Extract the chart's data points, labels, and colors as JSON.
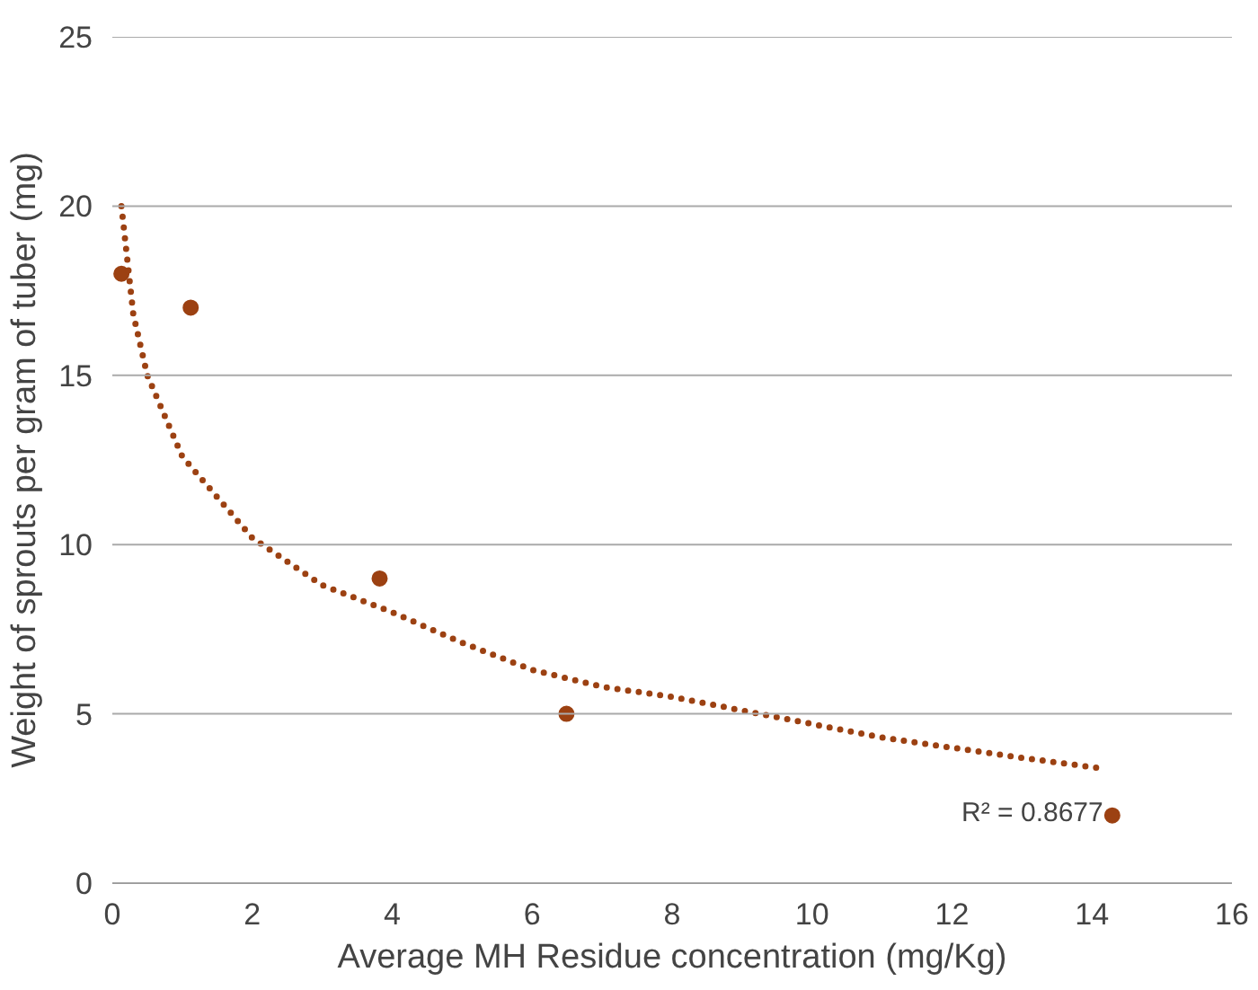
{
  "chart_data": {
    "type": "scatter",
    "xlabel": "Average MH Residue concentration (mg/Kg)",
    "ylabel": "Weight of sprouts per gram of tuber (mg)",
    "xlim": [
      0,
      16
    ],
    "xticks": [
      0,
      2,
      4,
      6,
      8,
      10,
      12,
      14,
      16
    ],
    "ylim": [
      0,
      25
    ],
    "yticks": [
      0,
      5,
      10,
      15,
      20,
      25
    ],
    "grid": "y",
    "series": [
      {
        "color": "#9c4112",
        "marker": "circle",
        "x": [
          0.13,
          1.12,
          3.82,
          6.49,
          14.29
        ],
        "values": [
          18,
          17,
          9,
          5,
          2
        ]
      },
      {
        "type": "line",
        "color": "#9c4112",
        "line_style": "dotted",
        "x": [
          0.13,
          0.3,
          0.5,
          1,
          2,
          3,
          4,
          5,
          6,
          7,
          8,
          9,
          10,
          11,
          12,
          13,
          14.1
        ],
        "values": [
          20,
          16.8,
          15.0,
          12.6,
          10.2,
          8.8,
          8.0,
          7.1,
          6.3,
          5.8,
          5.5,
          5.1,
          4.7,
          4.3,
          4.0,
          3.7,
          3.4
        ]
      }
    ],
    "annotations": [
      "R² = 0.8677"
    ]
  }
}
